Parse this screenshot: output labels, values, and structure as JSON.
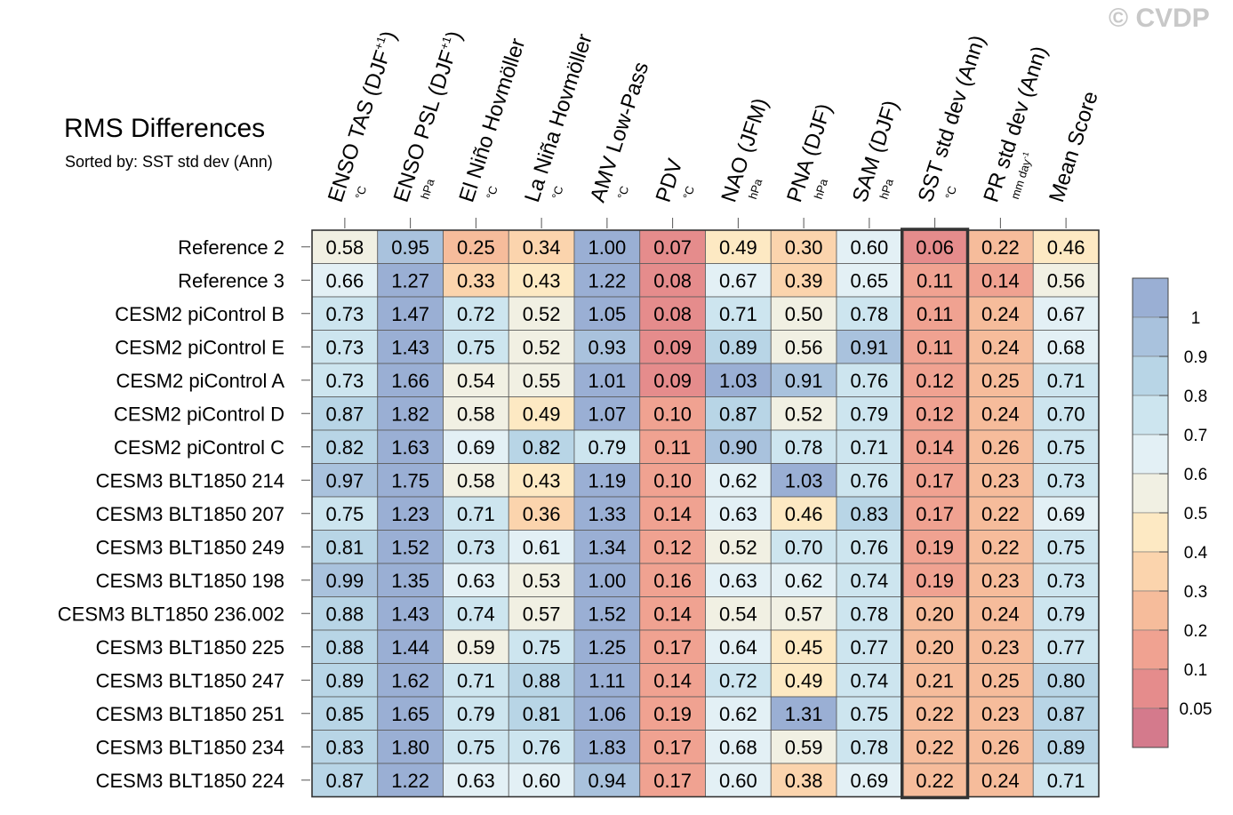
{
  "header": {
    "title": "RMS Differences",
    "subtitle": "Sorted by: SST std dev (Ann)",
    "copyright": "© CVDP"
  },
  "colors": {
    "palette": [
      "#d47a8c",
      "#e58c8c",
      "#f0a291",
      "#f6bc9b",
      "#fbd4ad",
      "#fde9c3",
      "#f1f0e3",
      "#e3f0f5",
      "#cde5ef",
      "#b8d5e6",
      "#a9c2dd",
      "#9aafd4"
    ],
    "highlight_border": "#333333"
  },
  "chart_data": {
    "type": "heatmap",
    "title": "RMS Differences",
    "sort_note": "Sorted by: SST std dev (Ann)",
    "columns": [
      {
        "label": "ENSO TAS (DJF",
        "sup": "+1",
        "close": ")",
        "unit": "°C"
      },
      {
        "label": "ENSO PSL (DJF",
        "sup": "+1",
        "close": ")",
        "unit": "hPa"
      },
      {
        "label": "El Niño Hovmöller",
        "unit": "°C"
      },
      {
        "label": "La Niña Hovmöller",
        "unit": "°C"
      },
      {
        "label": "AMV Low-Pass",
        "unit": "°C"
      },
      {
        "label": "PDV",
        "unit": "°C"
      },
      {
        "label": "NAO (JFM)",
        "unit": "hPa"
      },
      {
        "label": "PNA (DJF)",
        "unit": "hPa"
      },
      {
        "label": "SAM (DJF)",
        "unit": "hPa"
      },
      {
        "label": "SST std dev (Ann)",
        "unit": "°C"
      },
      {
        "label": "PR std dev (Ann)",
        "unit": "mm day",
        "unit_sup": "-1"
      },
      {
        "label": "Mean Score",
        "unit": ""
      }
    ],
    "highlighted_column": 9,
    "rows": [
      {
        "name": "Reference 2",
        "values": [
          "0.58",
          "0.95",
          "0.25",
          "0.34",
          "1.00",
          "0.07",
          "0.49",
          "0.30",
          "0.60",
          "0.06",
          "0.22",
          "0.46"
        ]
      },
      {
        "name": "Reference 3",
        "values": [
          "0.66",
          "1.27",
          "0.33",
          "0.43",
          "1.22",
          "0.08",
          "0.67",
          "0.39",
          "0.65",
          "0.11",
          "0.14",
          "0.56"
        ]
      },
      {
        "name": "CESM2 piControl B",
        "values": [
          "0.73",
          "1.47",
          "0.72",
          "0.52",
          "1.05",
          "0.08",
          "0.71",
          "0.50",
          "0.78",
          "0.11",
          "0.24",
          "0.67"
        ]
      },
      {
        "name": "CESM2 piControl E",
        "values": [
          "0.73",
          "1.43",
          "0.75",
          "0.52",
          "0.93",
          "0.09",
          "0.89",
          "0.56",
          "0.91",
          "0.11",
          "0.24",
          "0.68"
        ]
      },
      {
        "name": "CESM2 piControl A",
        "values": [
          "0.73",
          "1.66",
          "0.54",
          "0.55",
          "1.01",
          "0.09",
          "1.03",
          "0.91",
          "0.76",
          "0.12",
          "0.25",
          "0.71"
        ]
      },
      {
        "name": "CESM2 piControl D",
        "values": [
          "0.87",
          "1.82",
          "0.58",
          "0.49",
          "1.07",
          "0.10",
          "0.87",
          "0.52",
          "0.79",
          "0.12",
          "0.24",
          "0.70"
        ]
      },
      {
        "name": "CESM2 piControl C",
        "values": [
          "0.82",
          "1.63",
          "0.69",
          "0.82",
          "0.79",
          "0.11",
          "0.90",
          "0.78",
          "0.71",
          "0.14",
          "0.26",
          "0.75"
        ]
      },
      {
        "name": "CESM3 BLT1850 214",
        "values": [
          "0.97",
          "1.75",
          "0.58",
          "0.43",
          "1.19",
          "0.10",
          "0.62",
          "1.03",
          "0.76",
          "0.17",
          "0.23",
          "0.73"
        ]
      },
      {
        "name": "CESM3 BLT1850 207",
        "values": [
          "0.75",
          "1.23",
          "0.71",
          "0.36",
          "1.33",
          "0.14",
          "0.63",
          "0.46",
          "0.83",
          "0.17",
          "0.22",
          "0.69"
        ]
      },
      {
        "name": "CESM3 BLT1850 249",
        "values": [
          "0.81",
          "1.52",
          "0.73",
          "0.61",
          "1.34",
          "0.12",
          "0.52",
          "0.70",
          "0.76",
          "0.19",
          "0.22",
          "0.75"
        ]
      },
      {
        "name": "CESM3 BLT1850 198",
        "values": [
          "0.99",
          "1.35",
          "0.63",
          "0.53",
          "1.00",
          "0.16",
          "0.63",
          "0.62",
          "0.74",
          "0.19",
          "0.23",
          "0.73"
        ]
      },
      {
        "name": "CESM3 BLT1850 236.002",
        "values": [
          "0.88",
          "1.43",
          "0.74",
          "0.57",
          "1.52",
          "0.14",
          "0.54",
          "0.57",
          "0.78",
          "0.20",
          "0.24",
          "0.79"
        ]
      },
      {
        "name": "CESM3 BLT1850 225",
        "values": [
          "0.88",
          "1.44",
          "0.59",
          "0.75",
          "1.25",
          "0.17",
          "0.64",
          "0.45",
          "0.77",
          "0.20",
          "0.23",
          "0.77"
        ]
      },
      {
        "name": "CESM3 BLT1850 247",
        "values": [
          "0.89",
          "1.62",
          "0.71",
          "0.88",
          "1.11",
          "0.14",
          "0.72",
          "0.49",
          "0.74",
          "0.21",
          "0.25",
          "0.80"
        ]
      },
      {
        "name": "CESM3 BLT1850 251",
        "values": [
          "0.85",
          "1.65",
          "0.79",
          "0.81",
          "1.06",
          "0.19",
          "0.62",
          "1.31",
          "0.75",
          "0.22",
          "0.23",
          "0.87"
        ]
      },
      {
        "name": "CESM3 BLT1850 234",
        "values": [
          "0.83",
          "1.80",
          "0.75",
          "0.76",
          "1.83",
          "0.17",
          "0.68",
          "0.59",
          "0.78",
          "0.22",
          "0.26",
          "0.89"
        ]
      },
      {
        "name": "CESM3 BLT1850 224",
        "values": [
          "0.87",
          "1.22",
          "0.63",
          "0.60",
          "0.94",
          "0.17",
          "0.60",
          "0.38",
          "0.69",
          "0.22",
          "0.24",
          "0.71"
        ]
      }
    ],
    "colorbar": {
      "bounds": [
        0.05,
        0.1,
        0.2,
        0.3,
        0.4,
        0.5,
        0.6,
        0.7,
        0.8,
        0.9,
        1
      ],
      "tick_labels": [
        "1",
        "0.9",
        "0.8",
        "0.7",
        "0.6",
        "0.5",
        "0.4",
        "0.3",
        "0.2",
        "0.1",
        "0.05"
      ]
    }
  }
}
